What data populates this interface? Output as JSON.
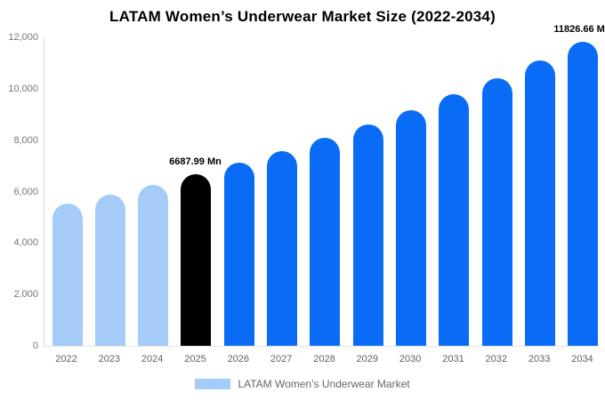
{
  "chart_data": {
    "type": "bar",
    "title": "LATAM Women’s Underwear Market Size (2022-2034)",
    "categories": [
      "2022",
      "2023",
      "2024",
      "2025",
      "2026",
      "2027",
      "2028",
      "2029",
      "2030",
      "2031",
      "2032",
      "2033",
      "2034"
    ],
    "values": [
      5531,
      5892,
      6278,
      6687.99,
      7125,
      7591,
      8088,
      8617,
      9180,
      9781,
      10421,
      11102,
      11826.66
    ],
    "unit": "Mn",
    "bar_roles": [
      "historic",
      "historic",
      "historic",
      "current",
      "forecast",
      "forecast",
      "forecast",
      "forecast",
      "forecast",
      "forecast",
      "forecast",
      "forecast",
      "forecast"
    ],
    "role_colors": {
      "historic": "#a5ccf8",
      "current": "#000000",
      "forecast": "#0a6cf6"
    },
    "annotations": [
      {
        "category": "2025",
        "text": "6687.99 Mn"
      },
      {
        "category": "2034",
        "text": "11826.66 Mn"
      }
    ],
    "ylim": [
      0,
      12000
    ],
    "y_ticks": [
      {
        "value": 0,
        "label": "0"
      },
      {
        "value": 2000,
        "label": "2,000"
      },
      {
        "value": 4000,
        "label": "4,000"
      },
      {
        "value": 6000,
        "label": "6,000"
      },
      {
        "value": 8000,
        "label": "8,000"
      },
      {
        "value": 10000,
        "label": "10,000"
      },
      {
        "value": 12000,
        "label": "12,000"
      }
    ],
    "grid": false,
    "legend": {
      "position": "bottom",
      "label": "LATAM Women’s Underwear Market",
      "swatch_color": "#a5ccf8"
    },
    "axis_color": "#d8d8d8",
    "tick_text_color": "#616161"
  }
}
